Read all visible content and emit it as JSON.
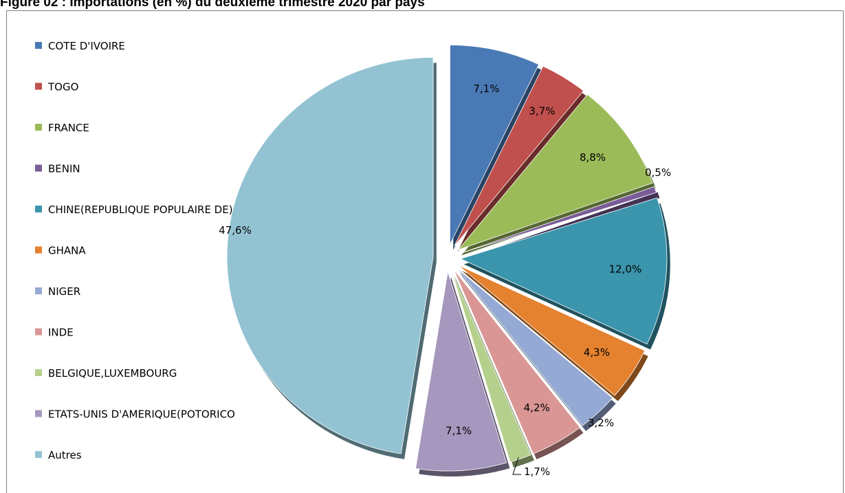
{
  "figure": {
    "title": "Figure 02 : Importations (en %) du deuxième trimestre 2020 par pays"
  },
  "chart_data": {
    "type": "pie",
    "exploded": true,
    "legend_position": "left",
    "slices": [
      {
        "label": "COTE D'IVOIRE",
        "value": 7.1,
        "value_label": "7,1%",
        "color": "#4a7ab5"
      },
      {
        "label": "TOGO",
        "value": 3.7,
        "value_label": "3,7%",
        "color": "#c0504d"
      },
      {
        "label": "FRANCE",
        "value": 8.8,
        "value_label": "8,8%",
        "color": "#9bbb59"
      },
      {
        "label": "BENIN",
        "value": 0.5,
        "value_label": "0,5%",
        "color": "#7a5c99"
      },
      {
        "label": "CHINE(REPUBLIQUE POPULAIRE DE)",
        "value": 12.0,
        "value_label": "12,0%",
        "color": "#3a95ad"
      },
      {
        "label": "GHANA",
        "value": 4.3,
        "value_label": "4,3%",
        "color": "#e5822f"
      },
      {
        "label": "NIGER",
        "value": 3.2,
        "value_label": "3,2%",
        "color": "#94a9d3"
      },
      {
        "label": "INDE",
        "value": 4.2,
        "value_label": "4,2%",
        "color": "#d99694"
      },
      {
        "label": "BELGIQUE,LUXEMBOURG",
        "value": 1.7,
        "value_label": "1,7%",
        "color": "#b5d08c"
      },
      {
        "label": "ETATS-UNIS D'AMERIQUE(POTORICO",
        "value": 7.1,
        "value_label": "7,1%",
        "color": "#a597bd"
      },
      {
        "label": "Autres",
        "value": 47.6,
        "value_label": "47,6%",
        "color": "#93c3d2"
      }
    ]
  }
}
